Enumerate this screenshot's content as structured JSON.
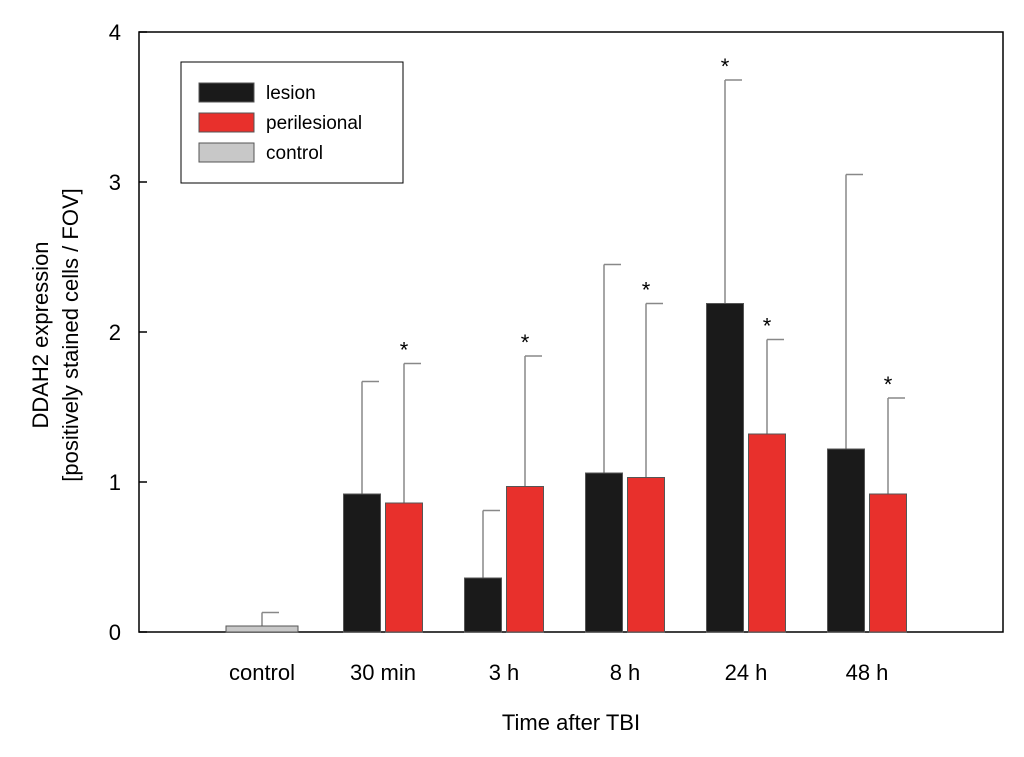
{
  "chart_data": {
    "type": "bar",
    "title": "",
    "xlabel": "Time after TBI",
    "ylabel_line1": "DDAH2 expression",
    "ylabel_line2": "[positively stained cells / FOV]",
    "ylim": [
      0,
      4
    ],
    "yticks": [
      "0",
      "1",
      "2",
      "3",
      "4"
    ],
    "grid": false,
    "legend_position": "top-left",
    "categories": [
      "control",
      "30 min",
      "3 h",
      "8 h",
      "24 h",
      "48 h"
    ],
    "series": [
      {
        "name": "lesion",
        "color": "#1a1a1a",
        "values": [
          null,
          0.92,
          0.36,
          1.06,
          2.19,
          1.22
        ],
        "errors": [
          null,
          1.67,
          0.81,
          2.45,
          3.68,
          3.05
        ],
        "significant": [
          false,
          false,
          false,
          false,
          true,
          false
        ]
      },
      {
        "name": "perilesional",
        "color": "#e8302c",
        "values": [
          null,
          0.86,
          0.97,
          1.03,
          1.32,
          0.92
        ],
        "errors": [
          null,
          1.79,
          1.84,
          2.19,
          1.95,
          1.56
        ],
        "significant": [
          false,
          true,
          true,
          true,
          true,
          true
        ]
      },
      {
        "name": "control",
        "color": "#c8c8c8",
        "values": [
          0.04,
          null,
          null,
          null,
          null,
          null
        ],
        "errors": [
          0.13,
          null,
          null,
          null,
          null,
          null
        ],
        "significant": [
          false,
          false,
          false,
          false,
          false,
          false
        ]
      }
    ],
    "significance_marker": "*"
  }
}
